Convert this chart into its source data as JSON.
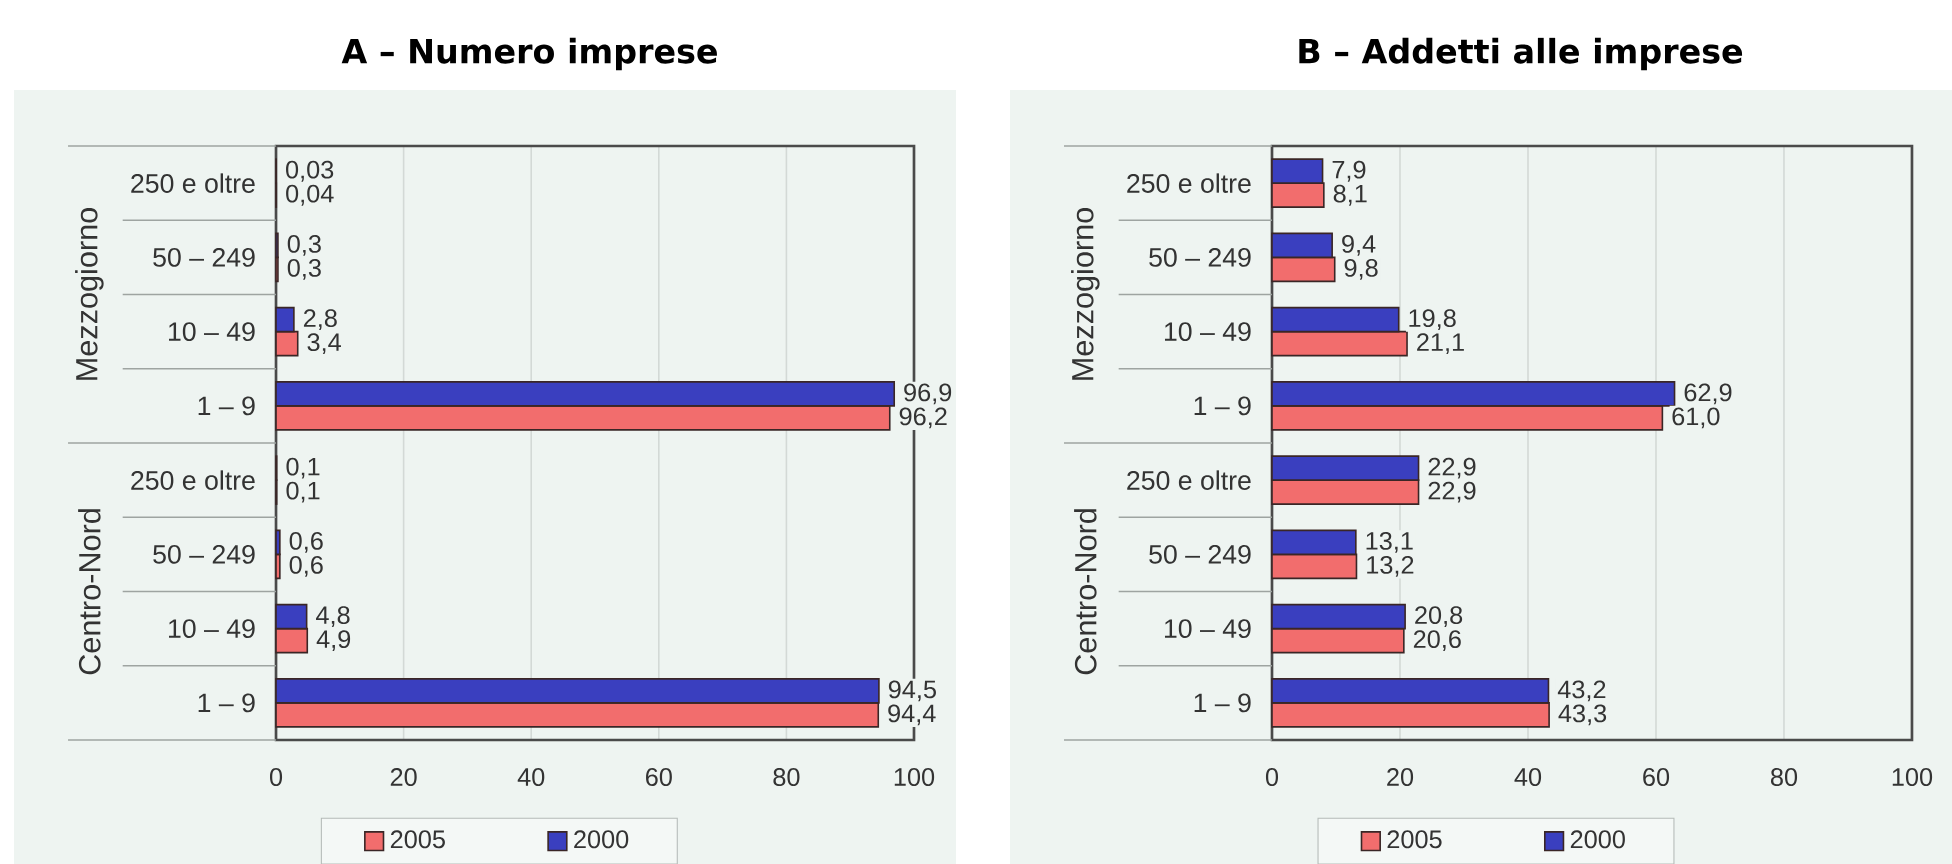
{
  "chart_data": [
    {
      "type": "bar",
      "orientation": "horizontal",
      "title": "A – Numero imprese",
      "categories": [
        "250 e oltre",
        "50 – 249",
        "10 – 49",
        "1 – 9",
        "250 e oltre",
        "50 – 249",
        "10 – 49",
        "1 – 9"
      ],
      "annotations": [
        "Mezzogiorno",
        "Centro-Nord"
      ],
      "series": [
        {
          "name": "2005",
          "color": "#f26d6d",
          "values": [
            0.04,
            0.3,
            3.4,
            96.2,
            0.1,
            0.6,
            4.9,
            94.4
          ],
          "value_labels": [
            "0,04",
            "0,3",
            "3,4",
            "96,2",
            "0,1",
            "0,6",
            "4,9",
            "94,4"
          ]
        },
        {
          "name": "2000",
          "color": "#3a3fbf",
          "values": [
            0.03,
            0.3,
            2.8,
            96.9,
            0.1,
            0.6,
            4.8,
            94.5
          ],
          "value_labels": [
            "0,03",
            "0,3",
            "2,8",
            "96,9",
            "0,1",
            "0,6",
            "4,8",
            "94,5"
          ]
        }
      ],
      "xlim": [
        0,
        100
      ],
      "xticks": [
        0,
        20,
        40,
        60,
        80,
        100
      ],
      "grid": "x",
      "legend": "bottom"
    },
    {
      "type": "bar",
      "orientation": "horizontal",
      "title": "B – Addetti alle imprese",
      "categories": [
        "250 e oltre",
        "50 – 249",
        "10 – 49",
        "1 – 9",
        "250 e oltre",
        "50 – 249",
        "10 – 49",
        "1 – 9"
      ],
      "annotations": [
        "Mezzogiorno",
        "Centro-Nord"
      ],
      "series": [
        {
          "name": "2005",
          "color": "#f26d6d",
          "values": [
            8.1,
            9.8,
            21.1,
            61.0,
            22.9,
            13.2,
            20.6,
            43.3
          ],
          "value_labels": [
            "8,1",
            "9,8",
            "21,1",
            "61,0",
            "22,9",
            "13,2",
            "20,6",
            "43,3"
          ]
        },
        {
          "name": "2000",
          "color": "#3a3fbf",
          "values": [
            7.9,
            9.4,
            19.8,
            62.9,
            22.9,
            13.1,
            20.8,
            43.2
          ],
          "value_labels": [
            "7,9",
            "9,4",
            "19,8",
            "62,9",
            "22,9",
            "13,1",
            "20,8",
            "43,2"
          ]
        }
      ],
      "xlim": [
        0,
        100
      ],
      "xticks": [
        0,
        20,
        40,
        60,
        80,
        100
      ],
      "grid": "x",
      "legend": "bottom"
    }
  ]
}
